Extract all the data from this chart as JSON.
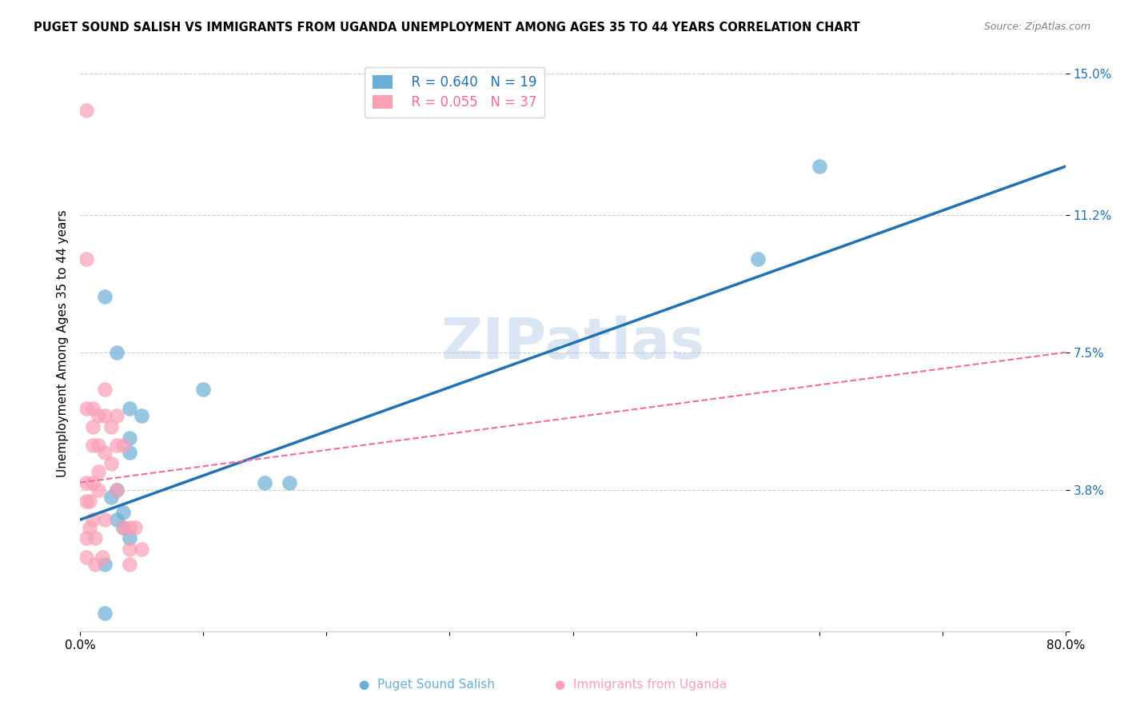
{
  "title": "PUGET SOUND SALISH VS IMMIGRANTS FROM UGANDA UNEMPLOYMENT AMONG AGES 35 TO 44 YEARS CORRELATION CHART",
  "source": "Source: ZipAtlas.com",
  "xlabel": "",
  "ylabel": "Unemployment Among Ages 35 to 44 years",
  "xlim": [
    0.0,
    0.8
  ],
  "ylim": [
    0.0,
    0.155
  ],
  "xticks": [
    0.0,
    0.1,
    0.2,
    0.3,
    0.4,
    0.5,
    0.6,
    0.7,
    0.8
  ],
  "xticklabels": [
    "0.0%",
    "",
    "",
    "",
    "",
    "",
    "",
    "",
    "80.0%"
  ],
  "ytick_positions": [
    0.0,
    0.038,
    0.075,
    0.112,
    0.15
  ],
  "yticklabels": [
    "",
    "3.8%",
    "7.5%",
    "11.2%",
    "15.0%"
  ],
  "blue_R": 0.64,
  "blue_N": 19,
  "pink_R": 0.055,
  "pink_N": 37,
  "blue_color": "#6baed6",
  "pink_color": "#fa9fb5",
  "blue_line_color": "#2171b5",
  "pink_line_color": "#f768a1",
  "watermark": "ZIPatlas",
  "blue_scatter_x": [
    0.02,
    0.03,
    0.04,
    0.05,
    0.04,
    0.03,
    0.035,
    0.025,
    0.03,
    0.04,
    0.1,
    0.15,
    0.17,
    0.035,
    0.02,
    0.55,
    0.6,
    0.04,
    0.02
  ],
  "blue_scatter_y": [
    0.09,
    0.075,
    0.06,
    0.058,
    0.048,
    0.038,
    0.032,
    0.036,
    0.03,
    0.052,
    0.065,
    0.04,
    0.04,
    0.028,
    0.018,
    0.1,
    0.125,
    0.025,
    0.005
  ],
  "pink_scatter_x": [
    0.005,
    0.005,
    0.005,
    0.005,
    0.005,
    0.01,
    0.01,
    0.01,
    0.01,
    0.01,
    0.015,
    0.015,
    0.015,
    0.015,
    0.02,
    0.02,
    0.02,
    0.02,
    0.025,
    0.025,
    0.03,
    0.03,
    0.03,
    0.035,
    0.035,
    0.04,
    0.04,
    0.04,
    0.045,
    0.05,
    0.005,
    0.005,
    0.008,
    0.008,
    0.012,
    0.012,
    0.018
  ],
  "pink_scatter_y": [
    0.14,
    0.1,
    0.06,
    0.04,
    0.02,
    0.06,
    0.055,
    0.05,
    0.04,
    0.03,
    0.058,
    0.05,
    0.043,
    0.038,
    0.065,
    0.058,
    0.048,
    0.03,
    0.055,
    0.045,
    0.058,
    0.05,
    0.038,
    0.05,
    0.028,
    0.028,
    0.022,
    0.018,
    0.028,
    0.022,
    0.035,
    0.025,
    0.035,
    0.028,
    0.025,
    0.018,
    0.02
  ],
  "blue_line_x": [
    0.0,
    0.8
  ],
  "blue_line_y": [
    0.03,
    0.125
  ],
  "pink_line_x": [
    0.0,
    0.8
  ],
  "pink_line_y": [
    0.04,
    0.075
  ]
}
